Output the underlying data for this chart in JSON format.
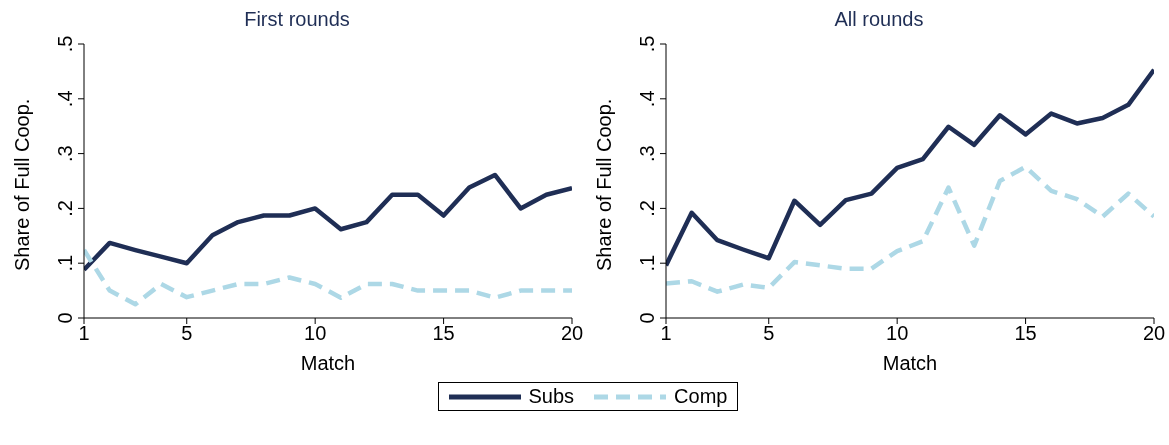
{
  "chart_data": [
    {
      "type": "line",
      "title": "First rounds",
      "xlabel": "Match",
      "ylabel": "Share of Full Coop.",
      "x": [
        1,
        2,
        3,
        4,
        5,
        6,
        7,
        8,
        9,
        10,
        11,
        12,
        13,
        14,
        15,
        16,
        17,
        18,
        19,
        20
      ],
      "xlim": [
        1,
        20
      ],
      "xticks": [
        1,
        5,
        10,
        15,
        20
      ],
      "ylim": [
        0,
        0.5
      ],
      "yticks": [
        {
          "value": 0,
          "label": "0"
        },
        {
          "value": 0.1,
          "label": ".1"
        },
        {
          "value": 0.2,
          "label": ".2"
        },
        {
          "value": 0.3,
          "label": ".3"
        },
        {
          "value": 0.4,
          "label": ".4"
        },
        {
          "value": 0.5,
          "label": ".5"
        }
      ],
      "grid": false,
      "marker": "none",
      "series": [
        {
          "color": "#1f2e55",
          "line_style": "solid",
          "values": [
            0.088,
            0.137,
            0.124,
            0.112,
            0.1,
            0.151,
            0.175,
            0.187,
            0.187,
            0.2,
            0.162,
            0.175,
            0.225,
            0.225,
            0.187,
            0.238,
            0.261,
            0.2,
            0.225,
            0.237
          ]
        },
        {
          "color": "#add8e6",
          "line_style": "dashed",
          "values": [
            0.124,
            0.05,
            0.025,
            0.062,
            0.038,
            0.05,
            0.062,
            0.062,
            0.074,
            0.062,
            0.037,
            0.062,
            0.062,
            0.05,
            0.05,
            0.05,
            0.037,
            0.05,
            0.05,
            0.05
          ]
        }
      ]
    },
    {
      "type": "line",
      "title": "All rounds",
      "xlabel": "Match",
      "ylabel": "Share of Full Coop.",
      "x": [
        1,
        2,
        3,
        4,
        5,
        6,
        7,
        8,
        9,
        10,
        11,
        12,
        13,
        14,
        15,
        16,
        17,
        18,
        19,
        20
      ],
      "xlim": [
        1,
        20
      ],
      "xticks": [
        1,
        5,
        10,
        15,
        20
      ],
      "ylim": [
        0,
        0.5
      ],
      "yticks": [
        {
          "value": 0,
          "label": "0"
        },
        {
          "value": 0.1,
          "label": ".1"
        },
        {
          "value": 0.2,
          "label": ".2"
        },
        {
          "value": 0.3,
          "label": ".3"
        },
        {
          "value": 0.4,
          "label": ".4"
        },
        {
          "value": 0.5,
          "label": ".5"
        }
      ],
      "grid": false,
      "legend": "bottom",
      "marker": "none",
      "series": [
        {
          "name": "Subs",
          "color": "#1f2e55",
          "line_style": "solid",
          "values": [
            0.096,
            0.192,
            0.142,
            0.125,
            0.109,
            0.214,
            0.17,
            0.215,
            0.227,
            0.274,
            0.29,
            0.349,
            0.316,
            0.37,
            0.335,
            0.373,
            0.355,
            0.365,
            0.389,
            0.453
          ]
        },
        {
          "name": "Comp",
          "color": "#add8e6",
          "line_style": "dashed",
          "values": [
            0.063,
            0.067,
            0.048,
            0.061,
            0.055,
            0.102,
            0.096,
            0.09,
            0.09,
            0.122,
            0.14,
            0.238,
            0.132,
            0.25,
            0.276,
            0.232,
            0.217,
            0.185,
            0.227,
            0.185
          ]
        }
      ]
    }
  ]
}
